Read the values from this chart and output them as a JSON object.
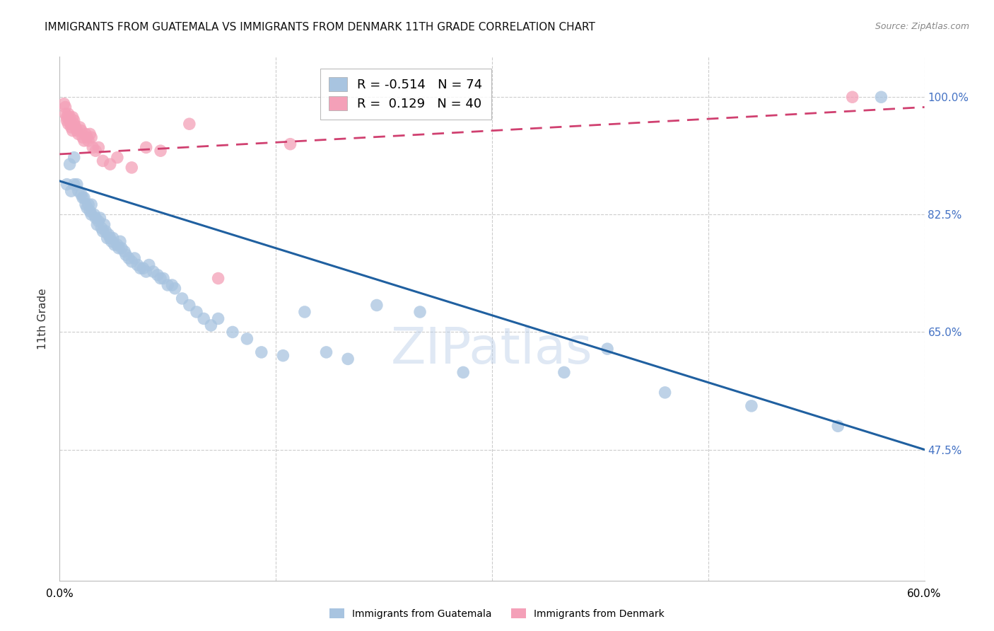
{
  "title": "IMMIGRANTS FROM GUATEMALA VS IMMIGRANTS FROM DENMARK 11TH GRADE CORRELATION CHART",
  "source": "Source: ZipAtlas.com",
  "ylabel": "11th Grade",
  "xlim": [
    0.0,
    0.6
  ],
  "ylim": [
    0.28,
    1.06
  ],
  "yticks": [
    0.475,
    0.65,
    0.825,
    1.0
  ],
  "ytick_labels": [
    "47.5%",
    "65.0%",
    "82.5%",
    "100.0%"
  ],
  "xticks": [
    0.0,
    0.15,
    0.3,
    0.45,
    0.6
  ],
  "xtick_labels": [
    "0.0%",
    "",
    "",
    "",
    "60.0%"
  ],
  "blue_R": -0.514,
  "blue_N": 74,
  "pink_R": 0.129,
  "pink_N": 40,
  "blue_color": "#a8c4e0",
  "blue_line_color": "#2060a0",
  "pink_color": "#f4a0b8",
  "pink_line_color": "#d04070",
  "watermark": "ZIPatlas",
  "blue_scatter_x": [
    0.005,
    0.007,
    0.008,
    0.01,
    0.01,
    0.012,
    0.013,
    0.015,
    0.016,
    0.017,
    0.018,
    0.019,
    0.02,
    0.021,
    0.022,
    0.022,
    0.024,
    0.025,
    0.026,
    0.027,
    0.028,
    0.029,
    0.03,
    0.031,
    0.032,
    0.033,
    0.034,
    0.035,
    0.036,
    0.037,
    0.038,
    0.04,
    0.041,
    0.042,
    0.043,
    0.045,
    0.046,
    0.048,
    0.05,
    0.052,
    0.054,
    0.056,
    0.058,
    0.06,
    0.062,
    0.065,
    0.068,
    0.07,
    0.072,
    0.075,
    0.078,
    0.08,
    0.085,
    0.09,
    0.095,
    0.1,
    0.105,
    0.11,
    0.12,
    0.13,
    0.14,
    0.155,
    0.17,
    0.185,
    0.2,
    0.22,
    0.25,
    0.28,
    0.35,
    0.38,
    0.42,
    0.48,
    0.54,
    0.57
  ],
  "blue_scatter_y": [
    0.87,
    0.9,
    0.86,
    0.91,
    0.87,
    0.87,
    0.86,
    0.855,
    0.85,
    0.85,
    0.84,
    0.835,
    0.84,
    0.83,
    0.825,
    0.84,
    0.825,
    0.82,
    0.81,
    0.815,
    0.82,
    0.805,
    0.8,
    0.81,
    0.8,
    0.79,
    0.795,
    0.79,
    0.785,
    0.79,
    0.78,
    0.78,
    0.775,
    0.785,
    0.775,
    0.77,
    0.765,
    0.76,
    0.755,
    0.76,
    0.75,
    0.745,
    0.745,
    0.74,
    0.75,
    0.74,
    0.735,
    0.73,
    0.73,
    0.72,
    0.72,
    0.715,
    0.7,
    0.69,
    0.68,
    0.67,
    0.66,
    0.67,
    0.65,
    0.64,
    0.62,
    0.615,
    0.68,
    0.62,
    0.61,
    0.69,
    0.68,
    0.59,
    0.59,
    0.625,
    0.56,
    0.54,
    0.51,
    1.0
  ],
  "pink_scatter_x": [
    0.003,
    0.004,
    0.004,
    0.005,
    0.005,
    0.006,
    0.006,
    0.007,
    0.007,
    0.008,
    0.008,
    0.009,
    0.009,
    0.01,
    0.01,
    0.011,
    0.012,
    0.013,
    0.014,
    0.015,
    0.016,
    0.017,
    0.018,
    0.019,
    0.02,
    0.021,
    0.022,
    0.023,
    0.025,
    0.027,
    0.03,
    0.035,
    0.04,
    0.05,
    0.06,
    0.07,
    0.09,
    0.11,
    0.16,
    0.55
  ],
  "pink_scatter_y": [
    0.99,
    0.985,
    0.975,
    0.97,
    0.965,
    0.96,
    0.975,
    0.97,
    0.965,
    0.96,
    0.955,
    0.95,
    0.97,
    0.965,
    0.96,
    0.955,
    0.95,
    0.945,
    0.955,
    0.95,
    0.94,
    0.935,
    0.945,
    0.94,
    0.935,
    0.945,
    0.94,
    0.925,
    0.92,
    0.925,
    0.905,
    0.9,
    0.91,
    0.895,
    0.925,
    0.92,
    0.96,
    0.73,
    0.93,
    1.0
  ],
  "blue_trendline_x": [
    0.0,
    0.6
  ],
  "blue_trendline_y": [
    0.875,
    0.475
  ],
  "pink_trendline_x": [
    0.0,
    0.6
  ],
  "pink_trendline_y": [
    0.915,
    0.985
  ],
  "background_color": "#ffffff",
  "grid_color": "#cccccc",
  "title_fontsize": 11,
  "axis_label_fontsize": 10,
  "tick_fontsize": 9,
  "legend_fontsize": 12
}
